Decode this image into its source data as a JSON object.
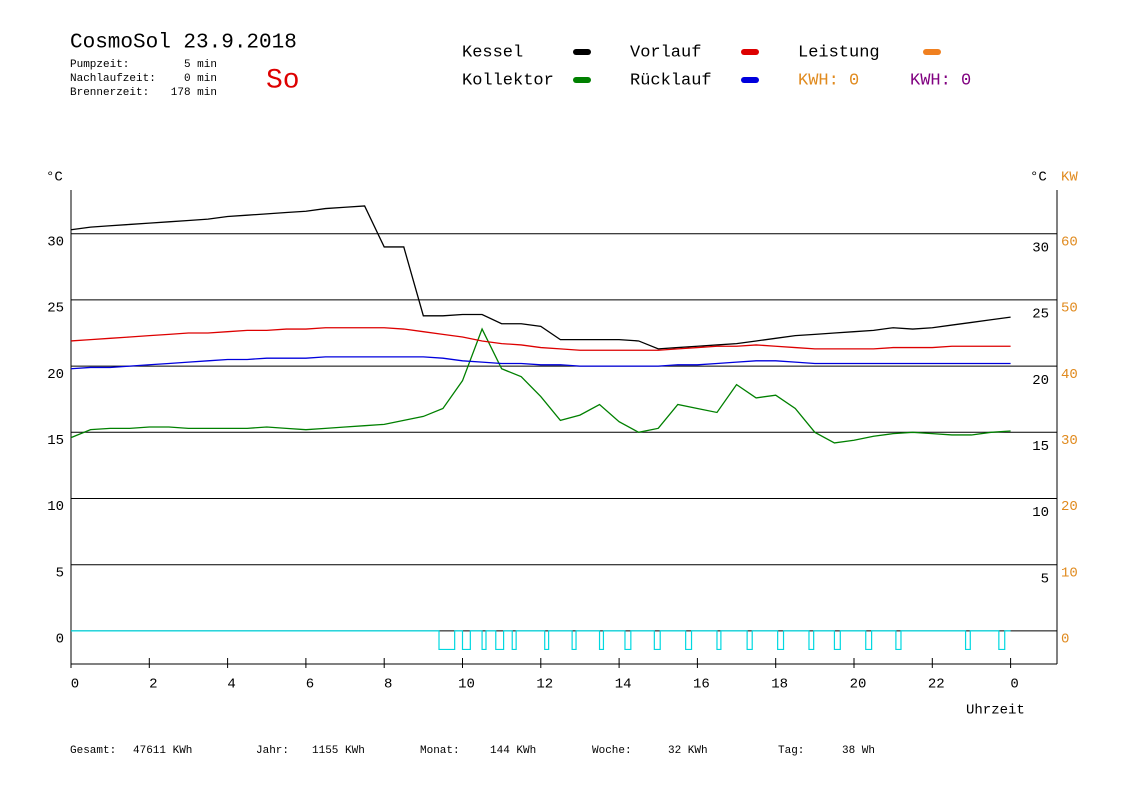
{
  "header": {
    "title": "CosmoSol 23.9.2018",
    "day": "So",
    "info": [
      {
        "label": "Pumpzeit:",
        "value": "5 min"
      },
      {
        "label": "Nachlaufzeit:",
        "value": "0 min"
      },
      {
        "label": "Brennerzeit:",
        "value": "178 min"
      }
    ],
    "kwh": [
      {
        "text": "KWH: 0",
        "color": "#e08a1e"
      },
      {
        "text": "KWH: 0",
        "color": "#800080"
      }
    ]
  },
  "chart_data": {
    "type": "line",
    "y_unit": "°C",
    "y2_unit": "KW",
    "x_label": "Uhrzeit",
    "x": [
      0,
      0.5,
      1,
      1.5,
      2,
      2.5,
      3,
      3.5,
      4,
      4.5,
      5,
      5.5,
      6,
      6.5,
      7,
      7.5,
      8,
      8.5,
      9,
      9.5,
      10,
      10.5,
      11,
      11.5,
      12,
      12.5,
      13,
      13.5,
      14,
      14.5,
      15,
      15.5,
      16,
      16.5,
      17,
      17.5,
      18,
      18.5,
      19,
      19.5,
      20,
      20.5,
      21,
      21.5,
      22,
      22.5,
      23,
      23.5,
      24
    ],
    "xlim": [
      0,
      24
    ],
    "xticks": [
      0,
      2,
      4,
      6,
      8,
      10,
      12,
      14,
      16,
      18,
      20,
      22,
      {
        "value": 24,
        "label": "0"
      }
    ],
    "ylim": [
      -2.5,
      33
    ],
    "yticks": [
      0,
      5,
      10,
      15,
      20,
      25,
      30
    ],
    "yticks_right": [
      5,
      10,
      15,
      20,
      25,
      30
    ],
    "y2lim": [
      -5,
      66
    ],
    "y2ticks": [
      0,
      10,
      20,
      30,
      40,
      50,
      60
    ],
    "y2_color": "#e08a1e",
    "grid": true,
    "series": [
      {
        "name": "Kessel",
        "color": "#000000",
        "values": [
          30.3,
          30.5,
          30.6,
          30.7,
          30.8,
          30.9,
          31.0,
          31.1,
          31.3,
          31.4,
          31.5,
          31.6,
          31.7,
          31.9,
          32.0,
          32.1,
          29.0,
          29.0,
          23.8,
          23.8,
          23.9,
          23.9,
          23.2,
          23.2,
          23.0,
          22.0,
          22.0,
          22.0,
          22.0,
          21.9,
          21.3,
          21.4,
          21.5,
          21.6,
          21.7,
          21.9,
          22.1,
          22.3,
          22.4,
          22.5,
          22.6,
          22.7,
          22.9,
          22.8,
          22.9,
          23.1,
          23.3,
          23.5,
          23.7
        ]
      },
      {
        "name": "Kollektor",
        "color": "#008000",
        "values": [
          14.6,
          15.2,
          15.3,
          15.3,
          15.4,
          15.4,
          15.3,
          15.3,
          15.3,
          15.3,
          15.4,
          15.3,
          15.2,
          15.3,
          15.4,
          15.5,
          15.6,
          15.9,
          16.2,
          16.8,
          18.9,
          22.8,
          19.8,
          19.2,
          17.7,
          15.9,
          16.3,
          17.1,
          15.8,
          15.0,
          15.3,
          17.1,
          16.8,
          16.5,
          18.6,
          17.6,
          17.8,
          16.8,
          15.0,
          14.2,
          14.4,
          14.7,
          14.9,
          15.0,
          14.9,
          14.8,
          14.8,
          15.0,
          15.1
        ]
      },
      {
        "name": "Vorlauf",
        "color": "#dd0000",
        "values": [
          21.9,
          22.0,
          22.1,
          22.2,
          22.3,
          22.4,
          22.5,
          22.5,
          22.6,
          22.7,
          22.7,
          22.8,
          22.8,
          22.9,
          22.9,
          22.9,
          22.9,
          22.8,
          22.6,
          22.4,
          22.2,
          21.9,
          21.7,
          21.6,
          21.4,
          21.3,
          21.2,
          21.2,
          21.2,
          21.2,
          21.2,
          21.3,
          21.4,
          21.5,
          21.5,
          21.6,
          21.5,
          21.4,
          21.3,
          21.3,
          21.3,
          21.3,
          21.4,
          21.4,
          21.4,
          21.5,
          21.5,
          21.5,
          21.5
        ]
      },
      {
        "name": "Rücklauf",
        "color": "#0000dd",
        "values": [
          19.8,
          19.9,
          19.9,
          20.0,
          20.1,
          20.2,
          20.3,
          20.4,
          20.5,
          20.5,
          20.6,
          20.6,
          20.6,
          20.7,
          20.7,
          20.7,
          20.7,
          20.7,
          20.7,
          20.6,
          20.4,
          20.3,
          20.2,
          20.2,
          20.1,
          20.1,
          20.0,
          20.0,
          20.0,
          20.0,
          20.0,
          20.1,
          20.1,
          20.2,
          20.3,
          20.4,
          20.4,
          20.3,
          20.2,
          20.2,
          20.2,
          20.2,
          20.2,
          20.2,
          20.2,
          20.2,
          20.2,
          20.2,
          20.2
        ]
      }
    ],
    "legend_only": [
      {
        "name": "Leistung",
        "color": "#f08020"
      }
    ],
    "pulses": {
      "color": "#00d8e0",
      "low": -1.4,
      "starts": [
        9.4,
        10.0,
        10.5,
        10.85,
        11.27,
        12.1,
        12.8,
        13.5,
        14.15,
        14.9,
        15.7,
        16.5,
        17.27,
        18.05,
        18.85,
        19.5,
        20.3,
        21.07,
        22.85,
        23.7
      ],
      "ends": [
        9.8,
        10.2,
        10.6,
        11.05,
        11.37,
        12.2,
        12.9,
        13.6,
        14.3,
        15.05,
        15.85,
        16.6,
        17.4,
        18.2,
        18.97,
        19.65,
        20.45,
        21.2,
        22.97,
        23.85
      ]
    }
  },
  "footer": [
    {
      "label": "Gesamt:",
      "value": "47611 KWh"
    },
    {
      "label": "Jahr:",
      "value": "1155 KWh"
    },
    {
      "label": "Monat:",
      "value": "144 KWh"
    },
    {
      "label": "Woche:",
      "value": "32 KWh"
    },
    {
      "label": "Tag:",
      "value": "38 Wh"
    }
  ]
}
